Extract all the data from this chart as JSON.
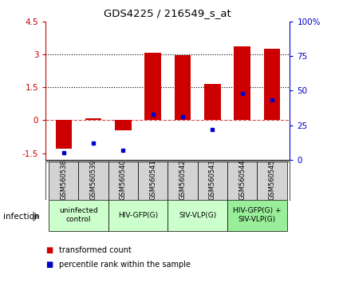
{
  "title": "GDS4225 / 216549_s_at",
  "samples": [
    "GSM560538",
    "GSM560539",
    "GSM560540",
    "GSM560541",
    "GSM560542",
    "GSM560543",
    "GSM560544",
    "GSM560545"
  ],
  "transformed_counts": [
    -1.3,
    0.1,
    -0.45,
    3.05,
    2.95,
    1.65,
    3.35,
    3.25
  ],
  "percentile_ranks": [
    5,
    12,
    7,
    33,
    31,
    22,
    48,
    43
  ],
  "bar_color": "#cc0000",
  "dot_color": "#0000cc",
  "ylim": [
    -1.8,
    4.5
  ],
  "yticks": [
    -1.5,
    0.0,
    1.5,
    3.0,
    4.5
  ],
  "y2lim": [
    0,
    100
  ],
  "y2ticks": [
    0,
    25,
    50,
    75,
    100
  ],
  "dotted_lines": [
    1.5,
    3.0
  ],
  "groups": [
    {
      "label": "uninfected\ncontrol",
      "start": 0,
      "end": 2,
      "color": "#ccffcc"
    },
    {
      "label": "HIV-GFP(G)",
      "start": 2,
      "end": 4,
      "color": "#ccffcc"
    },
    {
      "label": "SIV-VLP(G)",
      "start": 4,
      "end": 6,
      "color": "#ccffcc"
    },
    {
      "label": "HIV-GFP(G) +\nSIV-VLP(G)",
      "start": 6,
      "end": 8,
      "color": "#99ee99"
    }
  ],
  "infection_label": "infection",
  "legend_items": [
    {
      "color": "#cc0000",
      "label": "transformed count"
    },
    {
      "color": "#0000cc",
      "label": "percentile rank within the sample"
    }
  ]
}
